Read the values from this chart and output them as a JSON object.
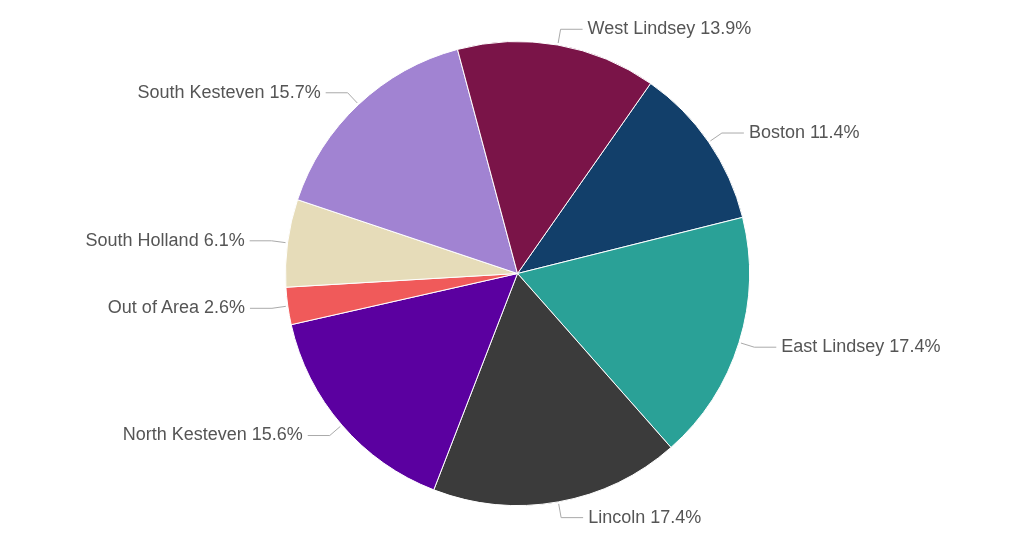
{
  "chart_data": {
    "type": "pie",
    "categories": [
      "Boston",
      "East Lindsey",
      "Lincoln",
      "North Kesteven",
      "Out of Area",
      "South Holland",
      "South Kesteven",
      "West Lindsey"
    ],
    "values": [
      11.4,
      17.4,
      17.4,
      15.6,
      2.6,
      6.1,
      15.7,
      13.9
    ],
    "value_labels": [
      "11.4%",
      "17.4%",
      "17.4%",
      "15.6%",
      "2.6%",
      "6.1%",
      "15.7%",
      "13.9%"
    ],
    "colors": [
      "#123f6a",
      "#2aa197",
      "#3b3b3b",
      "#5b00a0",
      "#f05a5a",
      "#e6dcb9",
      "#a183d2",
      "#7a1448"
    ],
    "legend": false
  }
}
